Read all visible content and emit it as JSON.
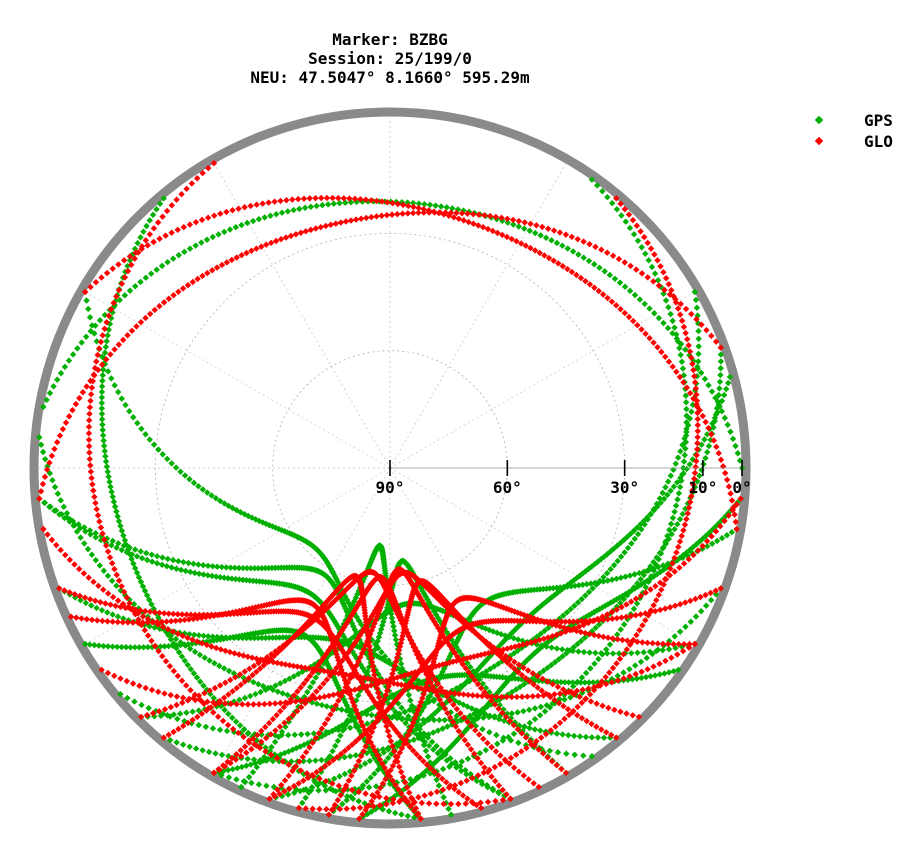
{
  "header": {
    "marker_line": "Marker: BZBG",
    "session_line": "Session: 25/199/0",
    "position_line": "NEU: 47.5047° 8.1660° 595.29m"
  },
  "legend": {
    "items": [
      {
        "label": "GPS",
        "color": "#00b000"
      },
      {
        "label": "GLO",
        "color": "#ff0000"
      }
    ]
  },
  "chart_data": {
    "type": "scatter",
    "projection": "polar skyplot (azimuth / elevation)",
    "title": "Marker: BZBG\nSession: 25/199/0\nNEU: 47.5047° 8.1660° 595.29m",
    "elevation_tick_labels": [
      "90°",
      "60°",
      "30°",
      "10°",
      "0°"
    ],
    "elevation_ticks": [
      90,
      60,
      30,
      10,
      0
    ],
    "elevation_range": [
      0,
      90
    ],
    "grid": true,
    "legend_position": "top-right",
    "series": [
      {
        "name": "GPS",
        "color": "#00b000",
        "tracks": [
          {
            "start_az": -120,
            "end_az": 175,
            "max_el": 42
          },
          {
            "start_az": -95,
            "end_az": 160,
            "max_el": 58
          },
          {
            "start_az": -150,
            "end_az": 125,
            "max_el": 35
          },
          {
            "start_az": -60,
            "end_az": 145,
            "max_el": 62
          },
          {
            "start_az": 100,
            "end_az": -170,
            "max_el": 48
          },
          {
            "start_az": 120,
            "end_az": -135,
            "max_el": 55
          },
          {
            "start_az": 75,
            "end_az": -160,
            "max_el": 38
          },
          {
            "start_az": -175,
            "end_az": 95,
            "max_el": 30
          },
          {
            "start_az": 140,
            "end_az": -110,
            "max_el": 44
          },
          {
            "start_az": 160,
            "end_az": -95,
            "max_el": 52
          },
          {
            "start_az": -140,
            "end_az": 70,
            "max_el": 25
          },
          {
            "start_az": 60,
            "end_az": -130,
            "max_el": 33
          },
          {
            "start_az": -40,
            "end_az": 175,
            "max_el": 20
          },
          {
            "start_az": 35,
            "end_az": -150,
            "max_el": 18
          },
          {
            "start_az": -165,
            "end_az": 150,
            "max_el": 66
          },
          {
            "start_az": 170,
            "end_az": -155,
            "max_el": 70
          },
          {
            "start_az": -85,
            "end_az": 110,
            "max_el": 27
          },
          {
            "start_az": 90,
            "end_az": -80,
            "max_el": 22
          }
        ]
      },
      {
        "name": "GLO",
        "color": "#ff0000",
        "tracks": [
          {
            "start_az": -150,
            "end_az": 160,
            "max_el": 62
          },
          {
            "start_az": -170,
            "end_az": 140,
            "max_el": 60
          },
          {
            "start_az": 150,
            "end_az": -160,
            "max_el": 64
          },
          {
            "start_az": 175,
            "end_az": -140,
            "max_el": 61
          },
          {
            "start_az": -115,
            "end_az": 175,
            "max_el": 50
          },
          {
            "start_az": 120,
            "end_az": -175,
            "max_el": 52
          },
          {
            "start_az": -100,
            "end_az": 120,
            "max_el": 36
          },
          {
            "start_az": 95,
            "end_az": -125,
            "max_el": 38
          },
          {
            "start_az": -135,
            "end_az": 155,
            "max_el": 63
          },
          {
            "start_az": 135,
            "end_az": -150,
            "max_el": 63
          },
          {
            "start_az": -60,
            "end_az": 100,
            "max_el": 24
          },
          {
            "start_az": 70,
            "end_az": -95,
            "max_el": 26
          },
          {
            "start_az": -160,
            "end_az": 110,
            "max_el": 45
          },
          {
            "start_az": 165,
            "end_az": -110,
            "max_el": 47
          },
          {
            "start_az": -30,
            "end_az": 160,
            "max_el": 15
          },
          {
            "start_az": 40,
            "end_az": -165,
            "max_el": 14
          }
        ]
      }
    ]
  }
}
